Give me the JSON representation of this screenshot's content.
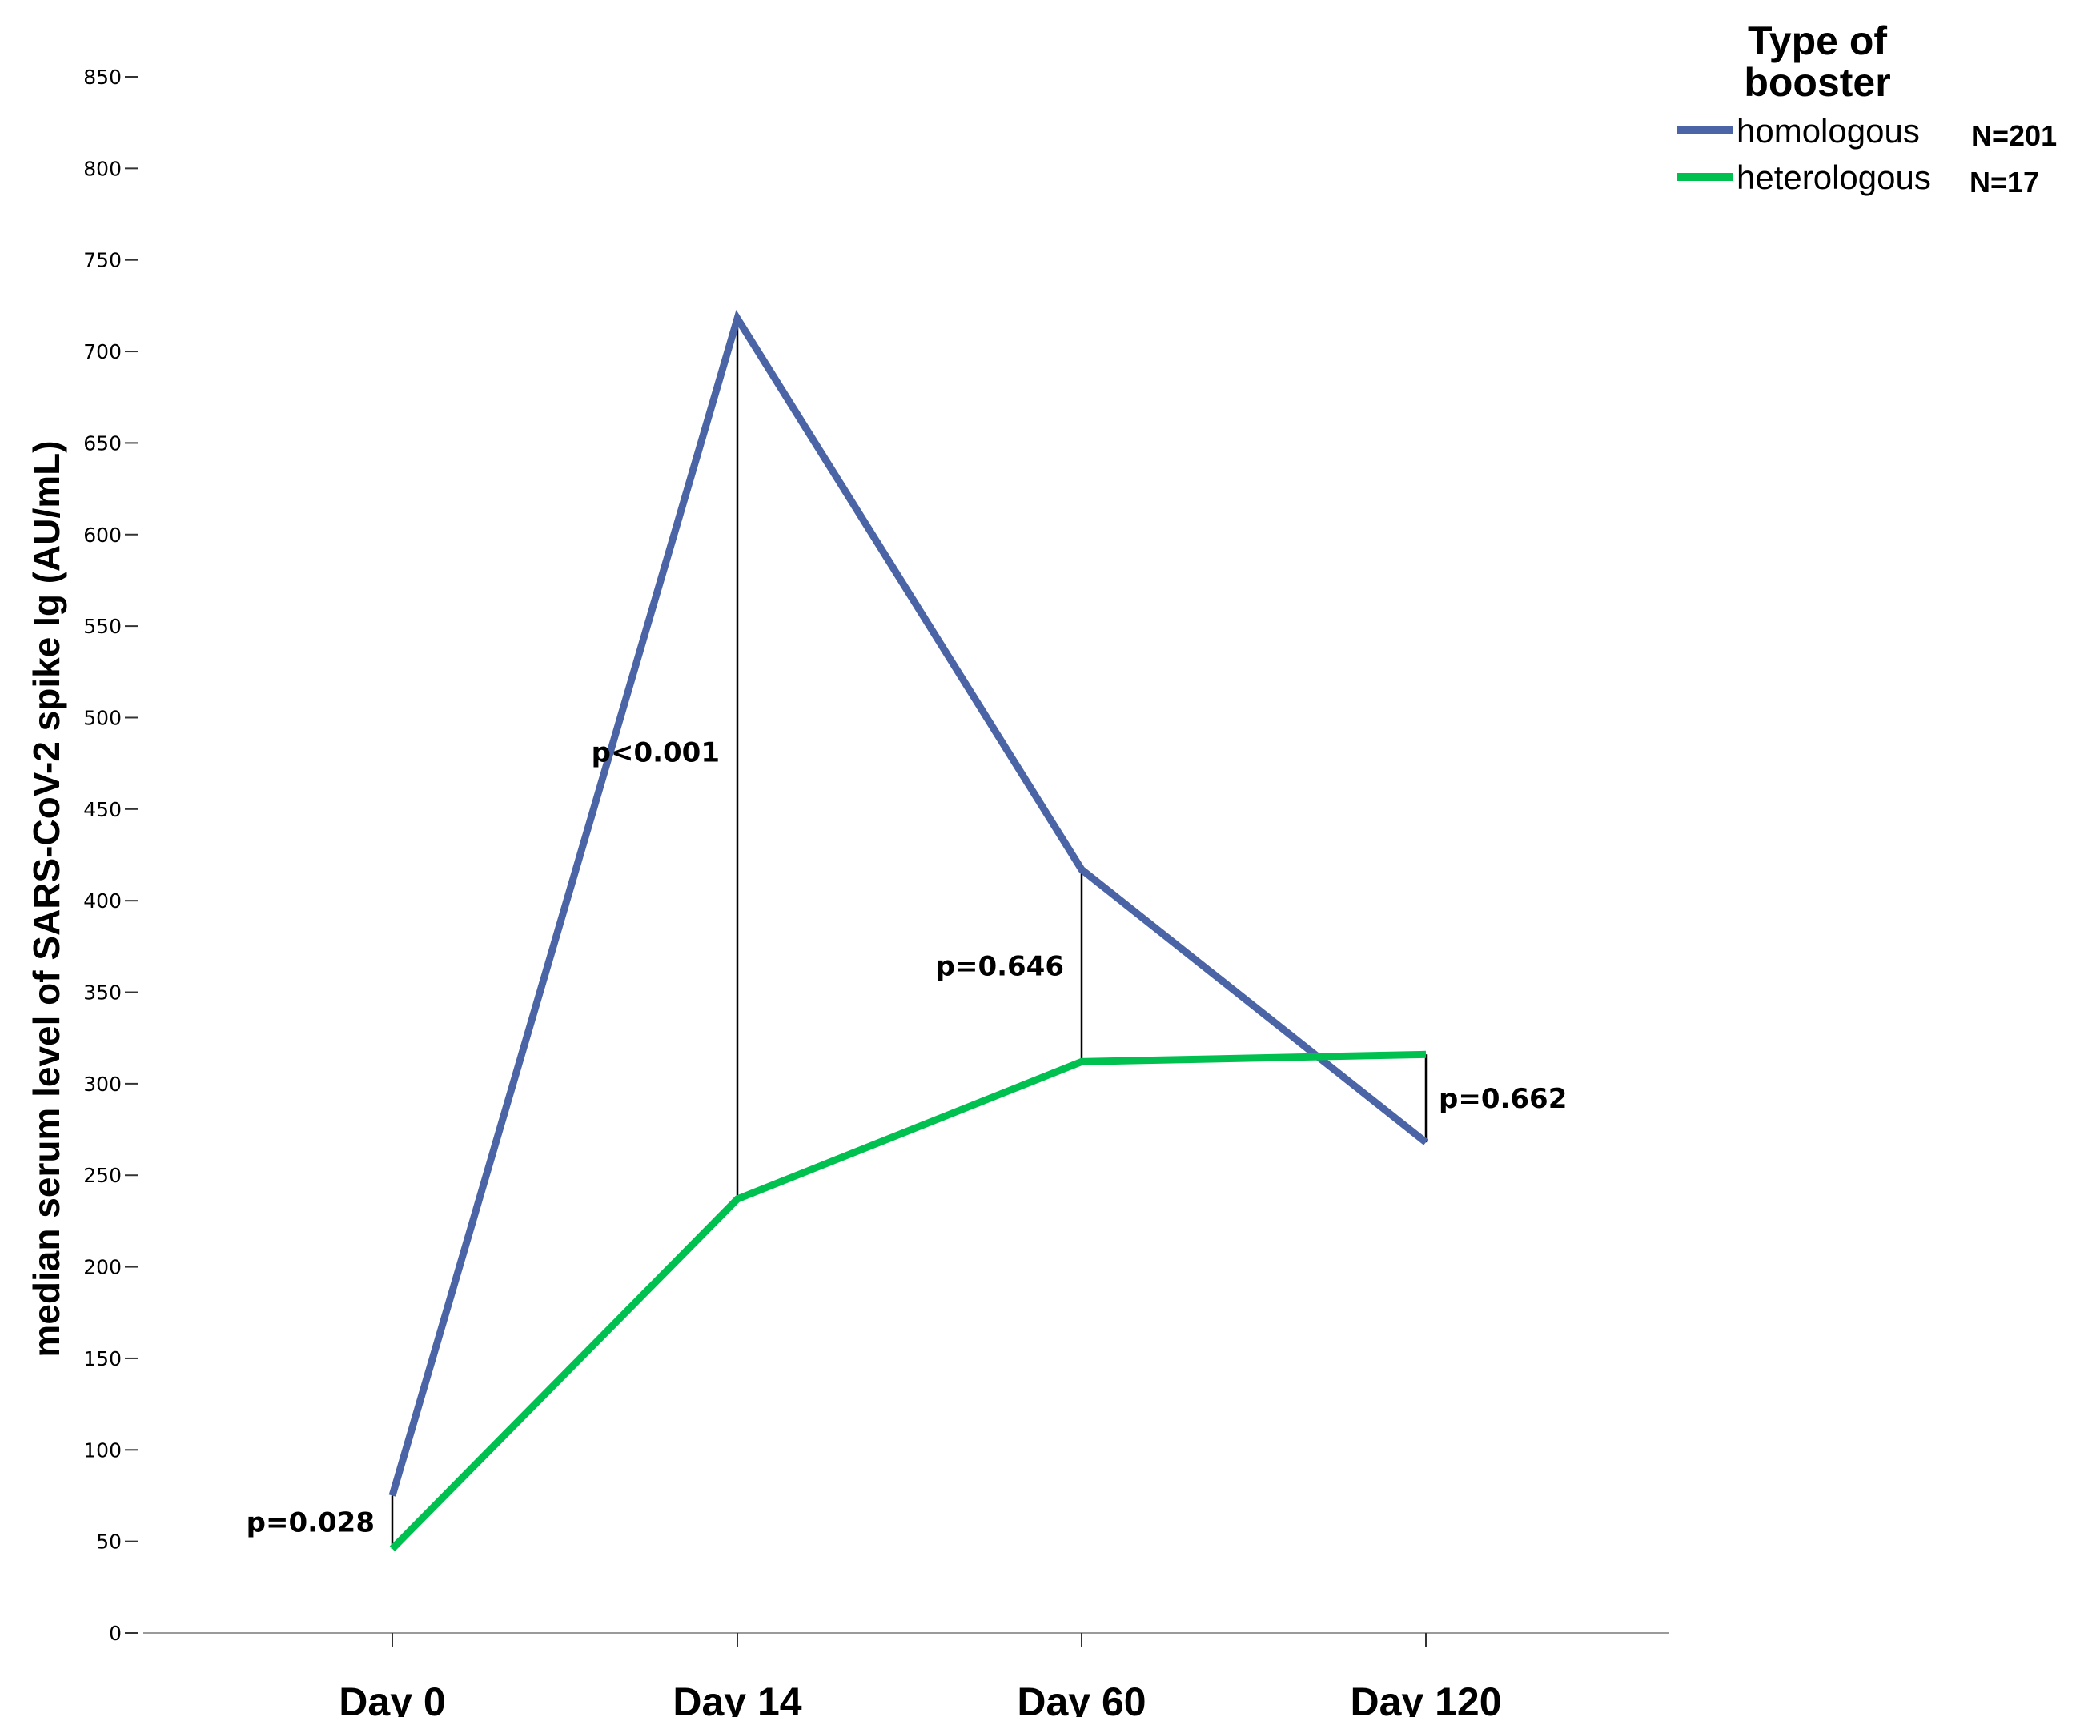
{
  "chart_data": {
    "type": "line",
    "ylabel": "median serum level of SARS-CoV-2 spike Ig (AU/mL)",
    "xlabel": "",
    "categories": [
      "Day 0",
      "Day 14",
      "Day 60",
      "Day 120"
    ],
    "y_ticks": [
      0,
      50,
      100,
      150,
      200,
      250,
      300,
      350,
      400,
      450,
      500,
      550,
      600,
      650,
      700,
      750,
      800,
      850
    ],
    "ylim": [
      0,
      850
    ],
    "grid": false,
    "legend": {
      "title_lines": [
        "Type of",
        "booster"
      ],
      "placement": "top-right"
    },
    "series": [
      {
        "name": "homologous",
        "n_label": "N=201",
        "color": "#4a64a6",
        "values": [
          75,
          718,
          417,
          268
        ]
      },
      {
        "name": "heterologous",
        "n_label": "N=17",
        "color": "#00c050",
        "values": [
          46,
          237,
          312,
          316
        ]
      }
    ],
    "p_values": [
      {
        "category": "Day 0",
        "text": "p=0.028",
        "side": "left"
      },
      {
        "category": "Day 14",
        "text": "p<0.001",
        "side": "left"
      },
      {
        "category": "Day 60",
        "text": "p=0.646",
        "side": "left"
      },
      {
        "category": "Day 120",
        "text": "p=0.662",
        "side": "right"
      }
    ]
  }
}
